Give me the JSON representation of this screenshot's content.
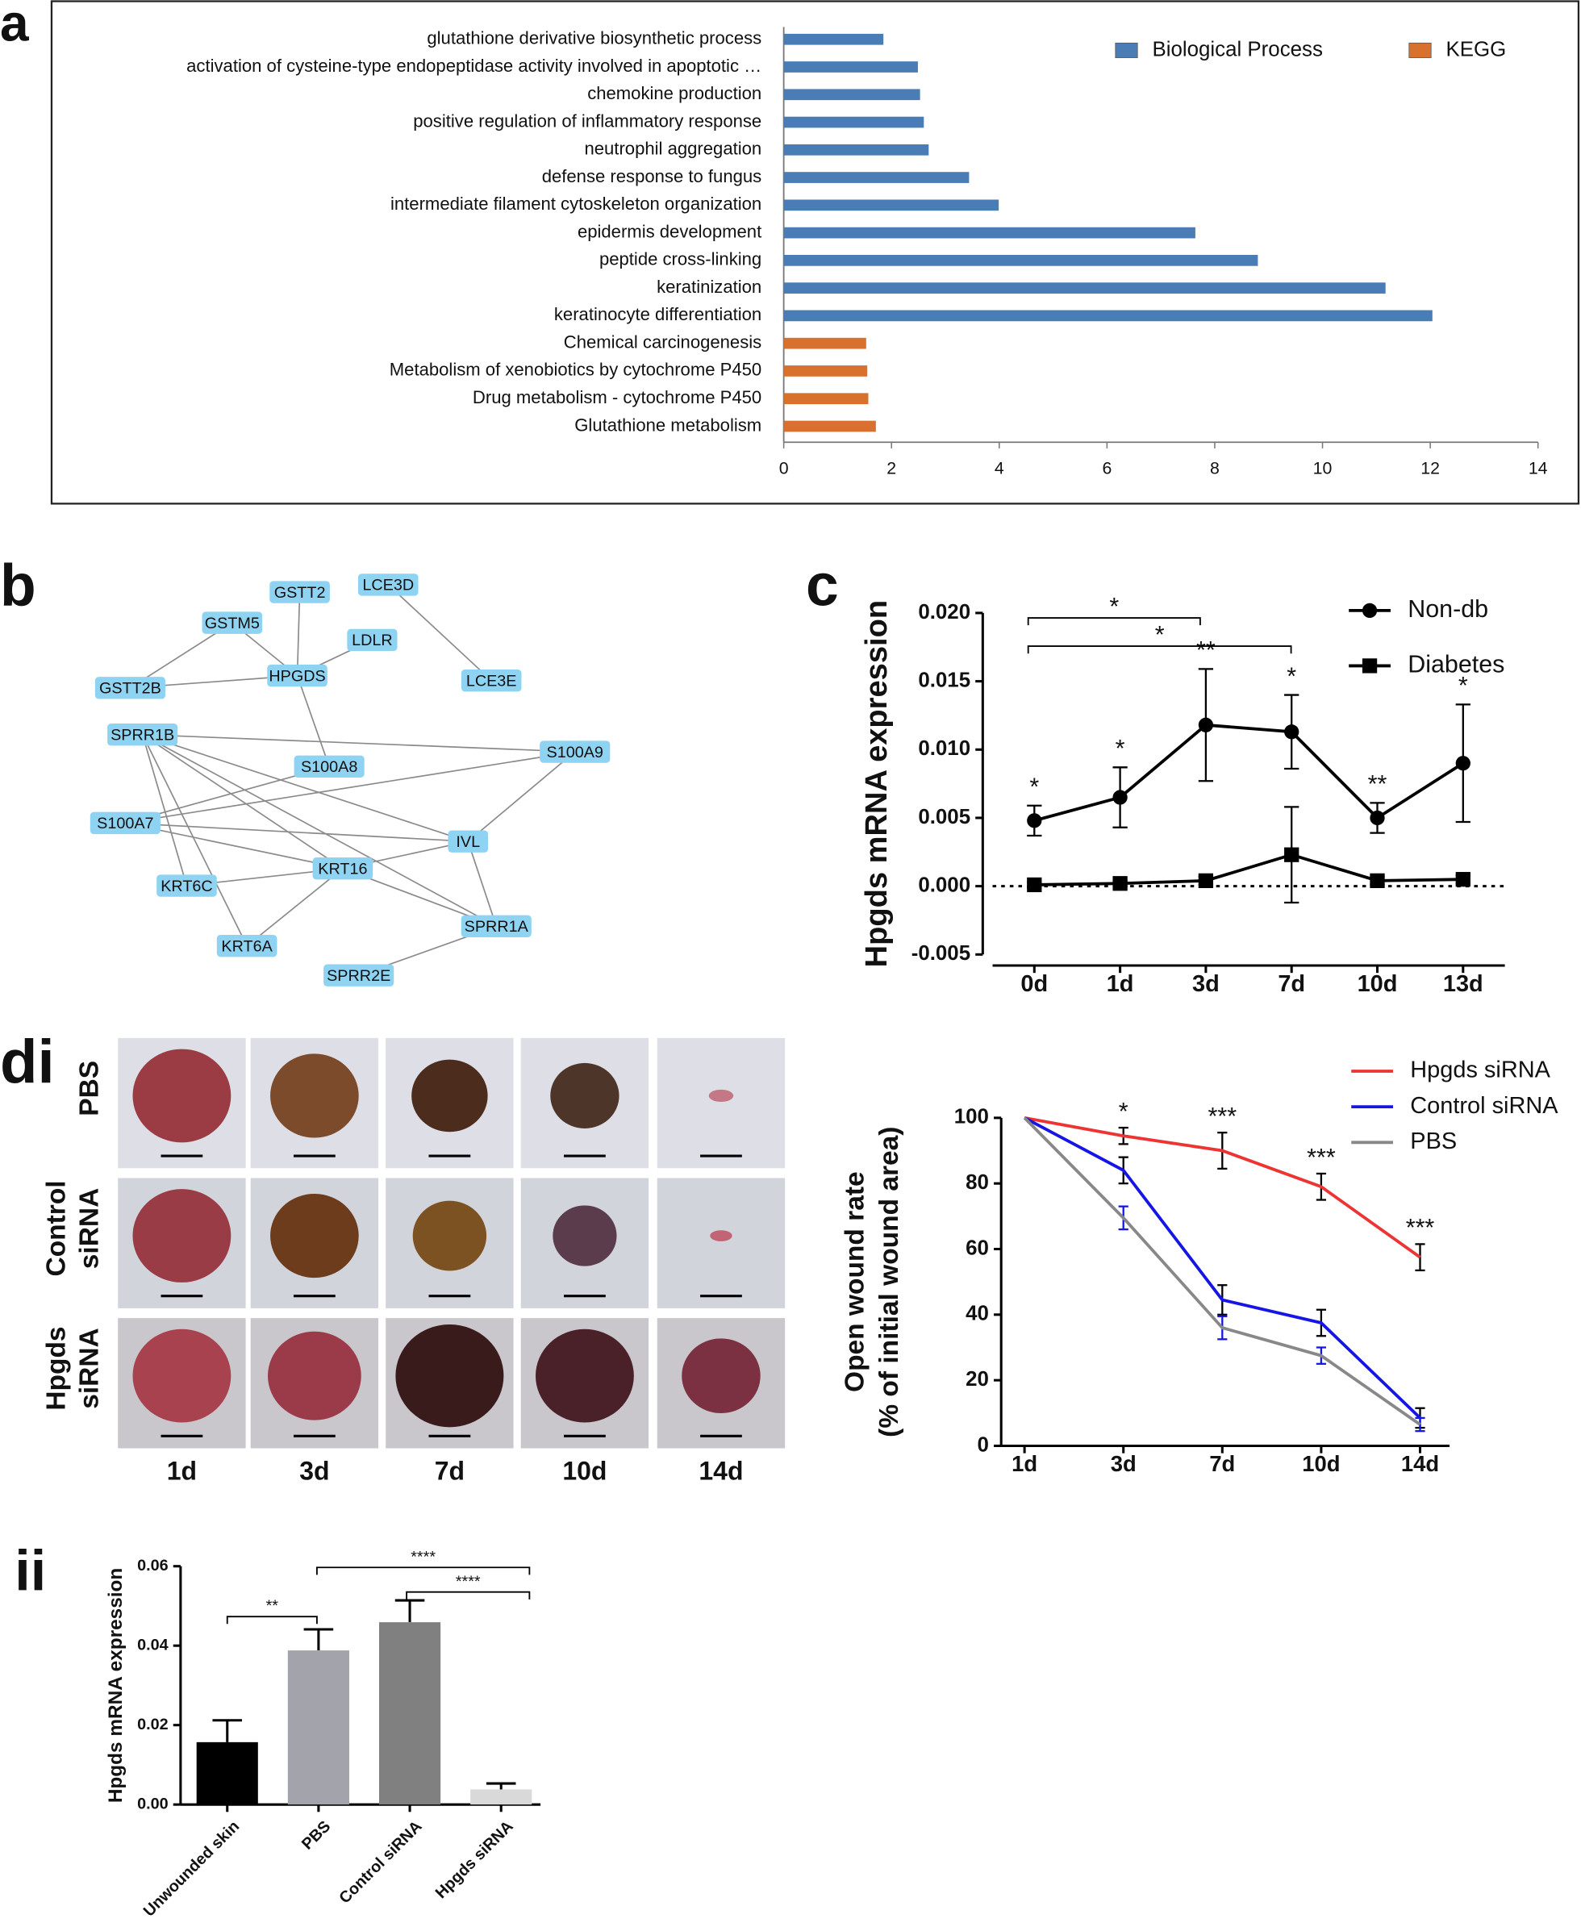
{
  "panel_labels": [
    "a",
    "b",
    "c",
    "di",
    "ii"
  ],
  "network": {
    "nodes": [
      "GSTT2",
      "LCE3D",
      "GSTM5",
      "LDLR",
      "HPGDS",
      "LCE3E",
      "GSTT2B",
      "SPRR1B",
      "S100A8",
      "S100A9",
      "S100A7",
      "IVL",
      "KRT16",
      "KRT6C",
      "SPRR1A",
      "KRT6A",
      "SPRR2E"
    ]
  },
  "photo_grid": {
    "rows": [
      [
        "PBS"
      ],
      [
        "Control",
        "siRNA"
      ],
      [
        "Hpgds",
        "siRNA"
      ]
    ],
    "columns": [
      "1d",
      "3d",
      "7d",
      "10d",
      "14d"
    ]
  },
  "chart_data": [
    {
      "type": "bar",
      "orientation": "horizontal",
      "categories": [
        "glutathione derivative biosynthetic process",
        "activation of cysteine-type endopeptidase activity involved in apoptotic …",
        "chemokine production",
        "positive regulation of inflammatory response",
        "neutrophil aggregation",
        "defense response to fungus",
        "intermediate filament cytoskeleton organization",
        "epidermis development",
        "peptide cross-linking",
        "keratinization",
        "keratinocyte differentiation",
        "Chemical carcinogenesis",
        "Metabolism of xenobiotics by cytochrome P450",
        "Drug metabolism - cytochrome P450",
        "Glutathione metabolism"
      ],
      "series": [
        {
          "name": "Biological Process",
          "color": "#4a7db5",
          "values": [
            1.85,
            2.49,
            2.53,
            2.6,
            2.69,
            3.44,
            3.99,
            7.64,
            8.8,
            11.17,
            12.04,
            null,
            null,
            null,
            null
          ]
        },
        {
          "name": "KEGG",
          "color": "#d9712e",
          "values": [
            null,
            null,
            null,
            null,
            null,
            null,
            null,
            null,
            null,
            null,
            null,
            1.53,
            1.55,
            1.57,
            1.71
          ]
        }
      ],
      "xlim": [
        0,
        14
      ],
      "xticks": [
        0,
        2,
        4,
        6,
        8,
        10,
        12,
        14
      ],
      "legend": "upper right"
    },
    {
      "type": "line",
      "y_label": "Hpgds mRNA expression",
      "categories": [
        "0d",
        "1d",
        "3d",
        "7d",
        "10d",
        "13d"
      ],
      "series": [
        {
          "name": "Non-db",
          "color": "#000000",
          "marker": "circle",
          "values": [
            0.0048,
            0.0065,
            0.0118,
            0.0113,
            0.005,
            0.009
          ],
          "errors": [
            0.0011,
            0.0022,
            0.0041,
            0.0027,
            0.0011,
            0.0043
          ]
        },
        {
          "name": "Diabetes",
          "color": "#000000",
          "marker": "square",
          "values": [
            0.0001,
            0.0002,
            0.0004,
            0.0023,
            0.0004,
            0.0005
          ],
          "errors": [
            0.0002,
            0.0002,
            0.0003,
            0.0035,
            0.0003,
            0.0003
          ]
        }
      ],
      "ylim": [
        -0.005,
        0.02
      ],
      "yticks": [
        {
          "value": -0.005,
          "label": "-0.005"
        },
        {
          "value": 0,
          "label": "0.000"
        },
        {
          "value": 0.005,
          "label": "0.005"
        },
        {
          "value": 0.01,
          "label": "0.010"
        },
        {
          "value": 0.015,
          "label": "0.015"
        },
        {
          "value": 0.02,
          "label": "0.020"
        }
      ],
      "zero_line": true,
      "annotations": [
        "*",
        "*",
        "**",
        "*",
        "**",
        "*"
      ],
      "bracket_labels": [
        "*",
        "*"
      ],
      "legend": "upper right"
    },
    {
      "type": "line",
      "y_label": [
        "Open wound rate",
        "(% of initial wound area)"
      ],
      "categories": [
        "1d",
        "3d",
        "7d",
        "10d",
        "14d"
      ],
      "series": [
        {
          "name": "Hpgds siRNA",
          "color": "#ee3333",
          "values": [
            100,
            94.5,
            90,
            79,
            57.5
          ],
          "errors": [
            null,
            2.5,
            5.5,
            4,
            4
          ]
        },
        {
          "name": "Control siRNA",
          "color": "#1515e6",
          "values": [
            100,
            84,
            44.5,
            37.5,
            8.5
          ],
          "errors": [
            null,
            4,
            4.5,
            4,
            3
          ]
        },
        {
          "name": "PBS",
          "color": "#888888",
          "values": [
            100,
            69.5,
            36,
            27.5,
            6.5
          ],
          "errors": [
            null,
            3.5,
            3.5,
            2.5,
            2
          ]
        }
      ],
      "ylim": [
        0,
        100
      ],
      "yticks": [
        0,
        20,
        40,
        60,
        80,
        100
      ],
      "annotations": [
        null,
        "*",
        "***",
        "***",
        "***"
      ],
      "legend": "upper right"
    },
    {
      "type": "bar",
      "orientation": "vertical",
      "y_label": "Hpgds mRNA expression",
      "categories": [
        "Unwounded skin",
        "PBS",
        "Control siRNA",
        "Hpgds siRNA"
      ],
      "values": [
        0.0157,
        0.0388,
        0.0459,
        0.0038
      ],
      "errors": [
        0.0055,
        0.0053,
        0.0055,
        0.0015
      ],
      "colors": [
        "#000000",
        "#a3a3ab",
        "#808080",
        "#d9d9d9"
      ],
      "ylim": [
        0,
        0.06
      ],
      "yticks": [
        {
          "value": 0,
          "label": "0.00"
        },
        {
          "value": 0.02,
          "label": "0.02"
        },
        {
          "value": 0.04,
          "label": "0.04"
        },
        {
          "value": 0.06,
          "label": "0.06"
        }
      ],
      "bracket_labels": [
        "**",
        "****",
        "****"
      ]
    }
  ]
}
